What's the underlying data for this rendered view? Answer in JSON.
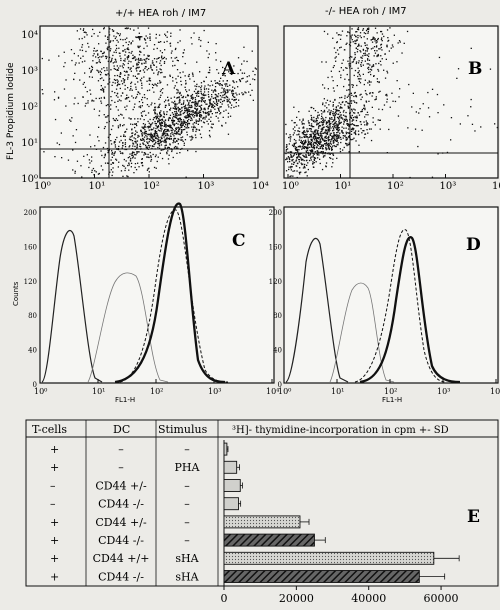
{
  "panels": {
    "A": {
      "letter": "A",
      "title": "+/+ HEA roh / IM7"
    },
    "B": {
      "letter": "B",
      "title": "-/- HEA roh / IM7"
    },
    "C": {
      "letter": "C"
    },
    "D": {
      "letter": "D"
    },
    "E": {
      "letter": "E"
    }
  },
  "dotplot": {
    "ylabel": "FL-3 Propidium Iodide",
    "xticks": [
      "10⁰",
      "10¹",
      "10²",
      "10³",
      "10⁴"
    ],
    "yticks": [
      "10⁴",
      "10³",
      "10²",
      "10¹",
      "10⁰"
    ]
  },
  "histogram": {
    "ylabel": "Counts",
    "xlabel": "FL1-H",
    "yticks": [
      "200",
      "160",
      "120",
      "80",
      "40",
      "0"
    ],
    "xticks": [
      "10⁰",
      "10¹",
      "10²",
      "10³",
      "10⁴"
    ]
  },
  "table": {
    "headers": [
      "T-cells",
      "DC",
      "Stimulus",
      "³H]- thymidine-incorporation in cpm +- SD"
    ],
    "rows": [
      {
        "tcells": "+",
        "dc": "–",
        "stim": "–"
      },
      {
        "tcells": "+",
        "dc": "–",
        "stim": "PHA"
      },
      {
        "tcells": "–",
        "dc": "CD44 +/-",
        "stim": "–"
      },
      {
        "tcells": "–",
        "dc": "CD44 -/-",
        "stim": "–"
      },
      {
        "tcells": "+",
        "dc": "CD44 +/-",
        "stim": "–"
      },
      {
        "tcells": "+",
        "dc": "CD44 -/-",
        "stim": "–"
      },
      {
        "tcells": "+",
        "dc": "CD44 +/+",
        "stim": "sHA"
      },
      {
        "tcells": "+",
        "dc": "CD44 -/-",
        "stim": "sHA"
      }
    ]
  },
  "chart_data": {
    "type": "bar",
    "orientation": "horizontal",
    "xlabel": "³H]- thymidine-incorporation in cpm +- SD",
    "xticks": [
      "0",
      "20000",
      "40000",
      "60000"
    ],
    "xlim": [
      0,
      68000
    ],
    "values": [
      800,
      3500,
      4500,
      4000,
      21000,
      25000,
      58000,
      54000
    ],
    "errors": [
      300,
      800,
      600,
      600,
      2500,
      3000,
      7000,
      7000
    ],
    "patterns": [
      "light",
      "light",
      "light",
      "light",
      "dotted",
      "hatched",
      "dotted",
      "hatched"
    ]
  }
}
